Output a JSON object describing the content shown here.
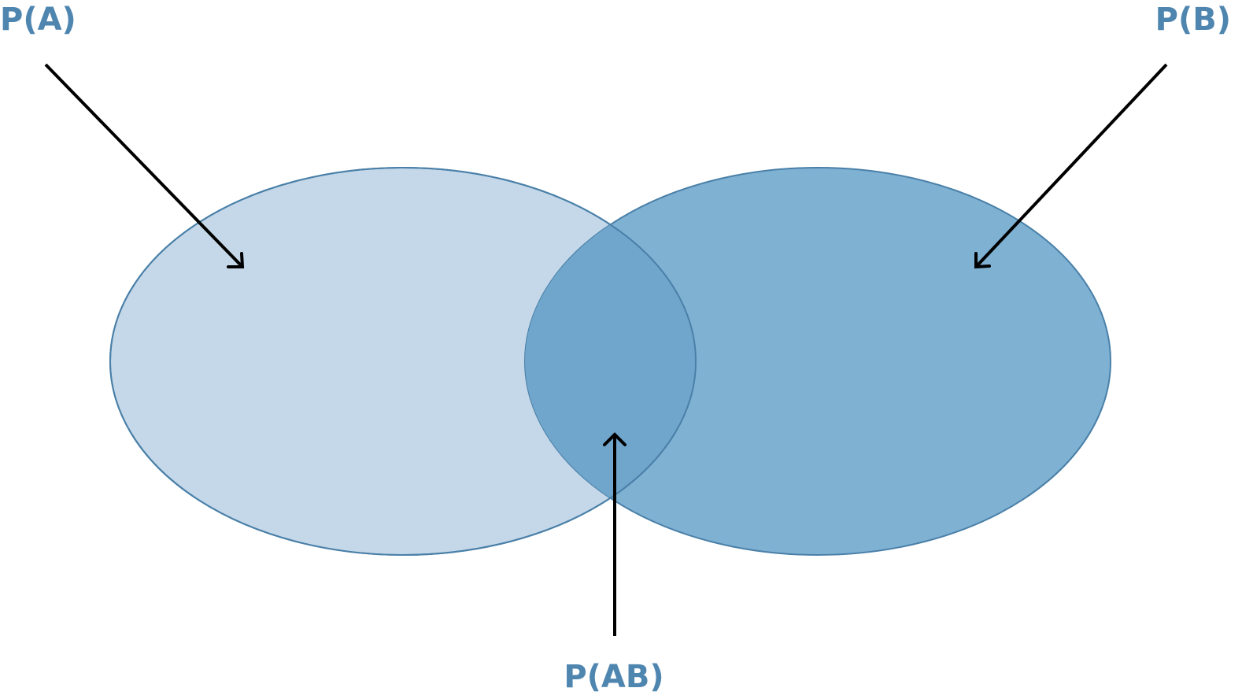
{
  "labels": {
    "a": "P(A)",
    "b": "P(B)",
    "ab": "P(AB)"
  },
  "colors": {
    "set_a_fill": "#c5d8e9",
    "set_b_fill": "#7fb1d3",
    "overlap_fill": "#71a6cc",
    "outline": "#4a80a8",
    "label": "#4f86b0",
    "arrow": "#000000"
  }
}
